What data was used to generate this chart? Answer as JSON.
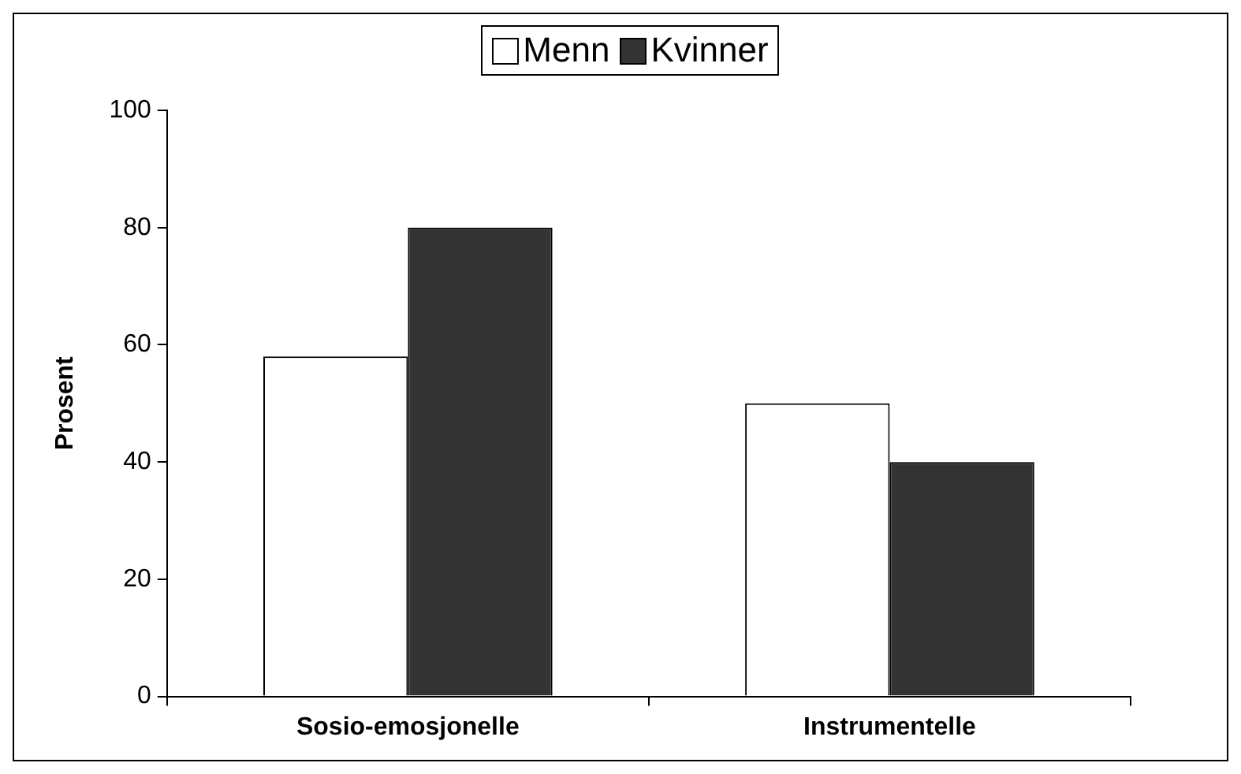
{
  "chart_data": {
    "type": "bar",
    "ylabel": "Prosent",
    "categories": [
      "Sosio-emosjonelle",
      "Instrumentelle"
    ],
    "series": [
      {
        "name": "Menn",
        "color": "#ffffff",
        "values": [
          58,
          50
        ]
      },
      {
        "name": "Kvinner",
        "color": "#333333",
        "values": [
          80,
          40
        ]
      }
    ],
    "ylim": [
      0,
      100
    ],
    "yticks": [
      0,
      20,
      40,
      60,
      80,
      100
    ],
    "legend": "top"
  }
}
